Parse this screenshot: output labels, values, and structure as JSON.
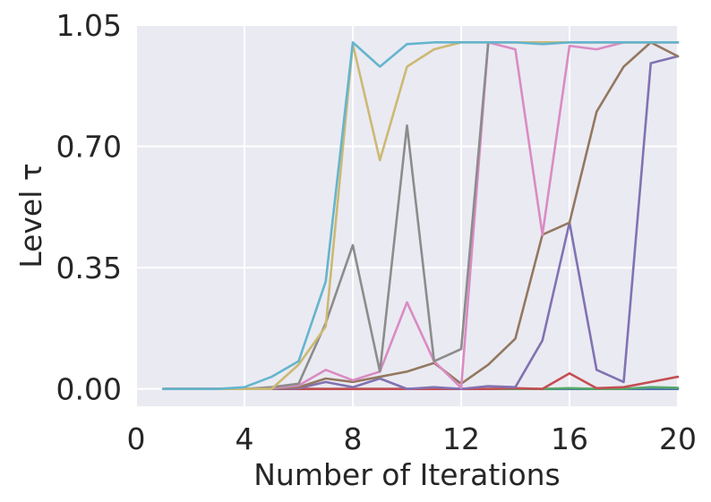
{
  "chart_data": {
    "type": "line",
    "title": "",
    "xlabel": "Number of Iterations",
    "ylabel": "Level τ",
    "xlim": [
      0,
      20
    ],
    "ylim": [
      -0.05,
      1.05
    ],
    "xticks": [
      0,
      4,
      8,
      12,
      16,
      20
    ],
    "xtick_labels": [
      "0",
      "4",
      "8",
      "12",
      "16",
      "20"
    ],
    "yticks": [
      0.0,
      0.35,
      0.7,
      1.05
    ],
    "ytick_labels": [
      "0.00",
      "0.35",
      "0.70",
      "1.05"
    ],
    "grid": true,
    "background": "#eaeaf2",
    "grid_color": "#ffffff",
    "x": [
      1,
      2,
      3,
      4,
      5,
      6,
      7,
      8,
      9,
      10,
      11,
      12,
      13,
      14,
      15,
      16,
      17,
      18,
      19,
      20
    ],
    "series": [
      {
        "color": "#4c72b0",
        "values": [
          0,
          0,
          0,
          0,
          0,
          0,
          0,
          0,
          0,
          0,
          0,
          0,
          0,
          0,
          0,
          0,
          0,
          0,
          0,
          0
        ]
      },
      {
        "color": "#55a868",
        "values": [
          0,
          0,
          0,
          0,
          0,
          0,
          0,
          0,
          0,
          0,
          0,
          0,
          0,
          0,
          0,
          0.002,
          0,
          0,
          0.005,
          0.003
        ]
      },
      {
        "color": "#c44e52",
        "values": [
          0,
          0,
          0,
          0,
          0,
          0,
          0,
          0,
          0,
          0,
          0,
          0,
          0,
          0.002,
          0,
          0.045,
          0.002,
          0.005,
          0.02,
          0.035
        ]
      },
      {
        "color": "#8172b2",
        "values": [
          0,
          0,
          0,
          0,
          0,
          0.002,
          0.02,
          0.005,
          0.03,
          0,
          0.005,
          0,
          0.008,
          0.005,
          0.14,
          0.48,
          0.055,
          0.02,
          0.94,
          0.96
        ]
      },
      {
        "color": "#937860",
        "values": [
          0,
          0,
          0,
          0,
          0,
          0.005,
          0.03,
          0.02,
          0.035,
          0.05,
          0.075,
          0.015,
          0.07,
          0.145,
          0.445,
          0.48,
          0.8,
          0.93,
          1.0,
          0.96
        ]
      },
      {
        "color": "#da8bc3",
        "values": [
          0,
          0,
          0,
          0,
          0.002,
          0.01,
          0.055,
          0.025,
          0.05,
          0.25,
          0.08,
          0.003,
          1.0,
          0.98,
          0.445,
          0.99,
          0.98,
          1.0,
          1.0,
          1.0
        ]
      },
      {
        "color": "#8c8c8c",
        "values": [
          0,
          0,
          0,
          0,
          0.005,
          0.015,
          0.19,
          0.415,
          0.05,
          0.76,
          0.08,
          0.115,
          1.0,
          1.0,
          1.0,
          1.0,
          1.0,
          1.0,
          1.0,
          1.0
        ]
      },
      {
        "color": "#ccb974",
        "values": [
          0,
          0,
          0,
          0,
          0,
          0.07,
          0.18,
          0.995,
          0.66,
          0.93,
          0.98,
          1.0,
          1.0,
          1.0,
          1.0,
          1.0,
          1.0,
          1.0,
          1.0,
          1.0
        ]
      },
      {
        "color": "#64b5cd",
        "values": [
          0,
          0,
          0,
          0.005,
          0.035,
          0.08,
          0.31,
          1.0,
          0.93,
          0.995,
          1.0,
          1.0,
          1.0,
          1.0,
          0.995,
          1.0,
          1.0,
          1.0,
          1.0,
          1.0
        ]
      }
    ]
  }
}
